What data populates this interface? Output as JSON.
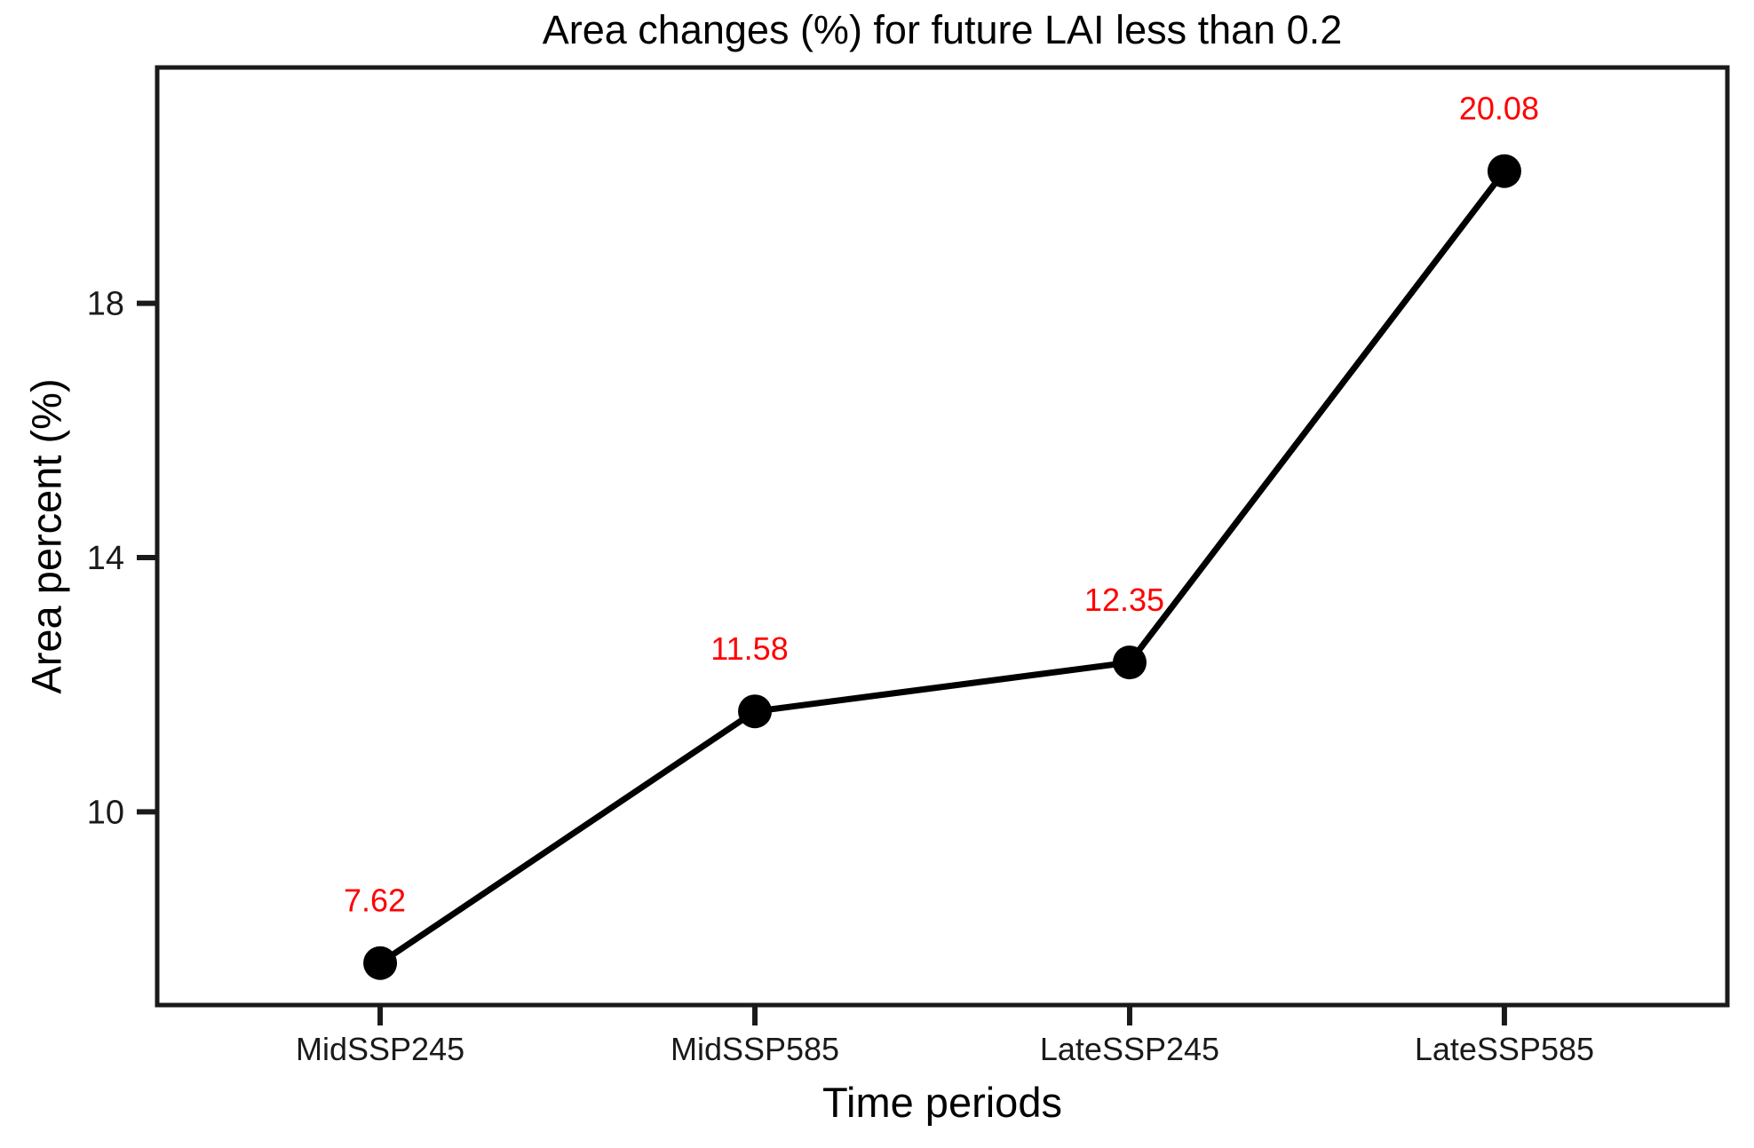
{
  "page": {
    "background": "#ffffff"
  },
  "chart_data": {
    "type": "line",
    "title": "Area changes (%) for future LAI less than 0.2",
    "xlabel": "Time periods",
    "ylabel": "Area percent (%)",
    "categories": [
      "MidSSP245",
      "MidSSP585",
      "LateSSP245",
      "LateSSP585"
    ],
    "series": [
      {
        "name": "Area percent (%)",
        "values": [
          7.62,
          11.58,
          12.35,
          20.08
        ]
      }
    ],
    "point_labels": [
      "7.62",
      "11.58",
      "12.35",
      "20.08"
    ],
    "yticks": [
      10,
      14,
      18
    ],
    "ylim": [
      6.96,
      21.71
    ],
    "grid": false,
    "legend": "none",
    "colors": {
      "line": "#000000",
      "marker": "#000000",
      "point_label": "#ff0000",
      "axis": "#1a1a1a",
      "tick_text": "#1a1a1a"
    }
  }
}
